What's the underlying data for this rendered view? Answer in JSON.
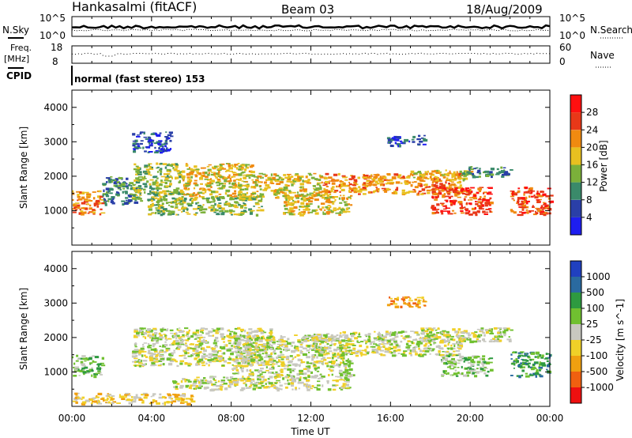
{
  "header": {
    "station": "Hankasalmi (fitACF)",
    "beam": "Beam 03",
    "date": "18/Aug/2009"
  },
  "noise_panel": {
    "left_label": "N.Sky",
    "right_label": "N.Search",
    "left_ticks": [
      "10^5",
      "10^0"
    ],
    "right_ticks": [
      "10^5",
      "10^0"
    ]
  },
  "freq_panel": {
    "left_label_1": "Freq.",
    "left_label_2": "[MHz]",
    "right_label": "Nave",
    "left_ticks": [
      "18",
      "8"
    ],
    "right_ticks": [
      "60",
      "0"
    ]
  },
  "cpid": {
    "label": "CPID",
    "value": "normal (fast stereo) 153"
  },
  "x_axis": {
    "label": "Time UT",
    "ticks": [
      "00:00",
      "04:00",
      "08:00",
      "12:00",
      "16:00",
      "20:00",
      "00:00"
    ]
  },
  "colors": {
    "power": [
      "#1e1ef0",
      "#2a3fa8",
      "#3a8a6a",
      "#7bb03a",
      "#e8c020",
      "#f08a10",
      "#e83818",
      "#ff1010"
    ],
    "velocity": [
      "#2040c0",
      "#2a6aa0",
      "#2e9a40",
      "#70c030",
      "#c8c8c0",
      "#f0d028",
      "#f0a010",
      "#f06010",
      "#ee1010"
    ]
  },
  "chart_data": [
    {
      "type": "heatmap",
      "name": "power",
      "ylabel": "Slant Range [km]",
      "xlabel": "Time UT",
      "xlim": [
        0,
        24
      ],
      "ylim": [
        0,
        4500
      ],
      "yticks": [
        1000,
        2000,
        3000,
        4000
      ],
      "colorbar": {
        "label": "Power [dB]",
        "ticks": [
          "4",
          "8",
          "12",
          "16",
          "20",
          "24",
          "28"
        ]
      },
      "regions": [
        {
          "t0": 0.0,
          "t1": 1.5,
          "r0": 900,
          "r1": 1600,
          "level": 5
        },
        {
          "t0": 1.5,
          "t1": 3.3,
          "r0": 1200,
          "r1": 2000,
          "level": 2
        },
        {
          "t0": 3.0,
          "t1": 5.5,
          "r0": 1300,
          "r1": 2400,
          "level": 3
        },
        {
          "t0": 5.5,
          "t1": 9.0,
          "r0": 1400,
          "r1": 2400,
          "level": 4
        },
        {
          "t0": 3.8,
          "t1": 9.5,
          "r0": 900,
          "r1": 1400,
          "level": 3
        },
        {
          "t0": 9.0,
          "t1": 12.5,
          "r0": 1400,
          "r1": 2100,
          "level": 4
        },
        {
          "t0": 10.5,
          "t1": 14.0,
          "r0": 900,
          "r1": 1500,
          "level": 4
        },
        {
          "t0": 12.5,
          "t1": 19.5,
          "r0": 1500,
          "r1": 2100,
          "level": 5
        },
        {
          "t0": 17.0,
          "t1": 20.0,
          "r0": 1900,
          "r1": 2200,
          "level": 4
        },
        {
          "t0": 18.0,
          "t1": 21.0,
          "r0": 900,
          "r1": 1700,
          "level": 6
        },
        {
          "t0": 19.5,
          "t1": 22.0,
          "r0": 2000,
          "r1": 2300,
          "level": 2
        },
        {
          "t0": 22.0,
          "t1": 24.0,
          "r0": 900,
          "r1": 1700,
          "level": 6
        },
        {
          "t0": 15.8,
          "t1": 17.7,
          "r0": 2900,
          "r1": 3200,
          "level": 1
        },
        {
          "t0": 3.0,
          "t1": 5.0,
          "r0": 2700,
          "r1": 3300,
          "level": 1
        }
      ]
    },
    {
      "type": "heatmap",
      "name": "velocity",
      "ylabel": "Slant Range [km]",
      "xlabel": "Time UT",
      "xlim": [
        0,
        24
      ],
      "ylim": [
        0,
        4500
      ],
      "yticks": [
        1000,
        2000,
        3000,
        4000
      ],
      "colorbar": {
        "label": "Velocity [m s^-1]",
        "ticks": [
          "1000",
          "500",
          "100",
          "25",
          "-25",
          "-100",
          "-500",
          "-1000"
        ]
      },
      "regions": [
        {
          "t0": 0.0,
          "t1": 1.5,
          "r0": 900,
          "r1": 1500,
          "level": 3
        },
        {
          "t0": 3.0,
          "t1": 10.0,
          "r0": 1200,
          "r1": 2300,
          "level": 4
        },
        {
          "t0": 8.0,
          "t1": 14.0,
          "r0": 900,
          "r1": 2100,
          "level": 4
        },
        {
          "t0": 12.0,
          "t1": 19.5,
          "r0": 1500,
          "r1": 2200,
          "level": 4
        },
        {
          "t0": 17.5,
          "t1": 22.0,
          "r0": 1900,
          "r1": 2300,
          "level": 4
        },
        {
          "t0": 5.0,
          "t1": 14.0,
          "r0": 500,
          "r1": 900,
          "level": 4
        },
        {
          "t0": 18.5,
          "t1": 21.0,
          "r0": 900,
          "r1": 1500,
          "level": 3
        },
        {
          "t0": 22.0,
          "t1": 24.0,
          "r0": 900,
          "r1": 1600,
          "level": 2
        },
        {
          "t0": 0.0,
          "t1": 6.0,
          "r0": 100,
          "r1": 400,
          "level": 5
        },
        {
          "t0": 15.8,
          "t1": 17.7,
          "r0": 2900,
          "r1": 3200,
          "level": 6
        }
      ]
    }
  ]
}
